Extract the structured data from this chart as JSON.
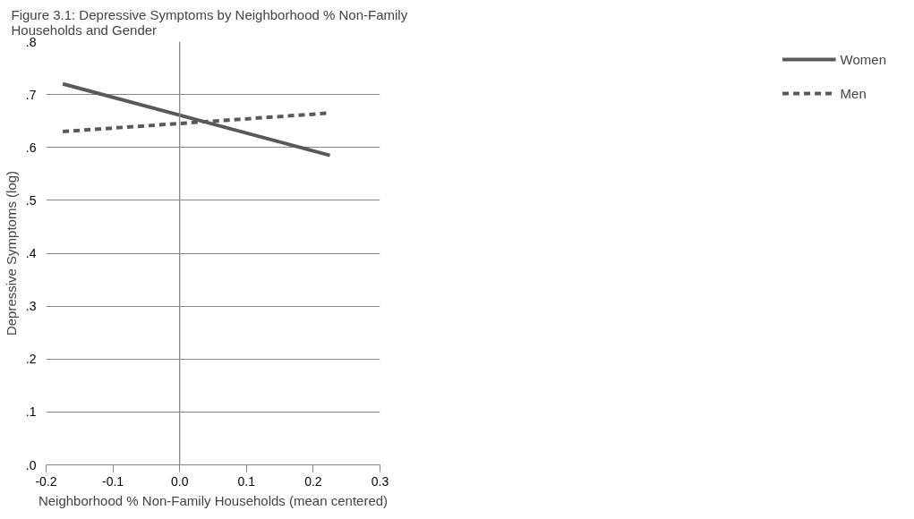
{
  "chart_data": {
    "type": "line",
    "title": "Figure 3.1:   Depressive Symptoms by Neighborhood % Non-Family Households and Gender",
    "xlabel": "Neighborhood % Non-Family Households (mean centered)",
    "ylabel": "Depressive Symptoms (log)",
    "x": [
      -0.175,
      0.225
    ],
    "series": [
      {
        "name": "Women",
        "color": "#595959",
        "values": [
          0.72,
          0.585
        ],
        "line_style": "solid"
      },
      {
        "name": "Men",
        "color": "#595959",
        "values": [
          0.63,
          0.665
        ],
        "line_style": "dashed"
      }
    ],
    "xlim": [
      -0.2,
      0.3
    ],
    "xticks": [
      {
        "value": -0.2,
        "label": "-0.2"
      },
      {
        "value": -0.1,
        "label": "-0.1"
      },
      {
        "value": 0,
        "label": "0.0"
      },
      {
        "value": 0.1,
        "label": "0.1"
      },
      {
        "value": 0.2,
        "label": "0.2"
      },
      {
        "value": 0.3,
        "label": "0.3"
      }
    ],
    "ylim": [
      0,
      0.8
    ],
    "yticks": [
      {
        "value": 0,
        "label": ".0"
      },
      {
        "value": 0.1,
        "label": ".1"
      },
      {
        "value": 0.2,
        "label": ".2"
      },
      {
        "value": 0.3,
        "label": ".3"
      },
      {
        "value": 0.4,
        "label": ".4"
      },
      {
        "value": 0.5,
        "label": ".5"
      },
      {
        "value": 0.6,
        "label": ".6"
      },
      {
        "value": 0.7,
        "label": ".7"
      },
      {
        "value": 0.8,
        "label": ".8"
      }
    ],
    "ref_lines": [
      {
        "axis": "x",
        "value": 0,
        "color": "#868686"
      }
    ],
    "grid": "y",
    "legend": "right",
    "marker": "none"
  }
}
